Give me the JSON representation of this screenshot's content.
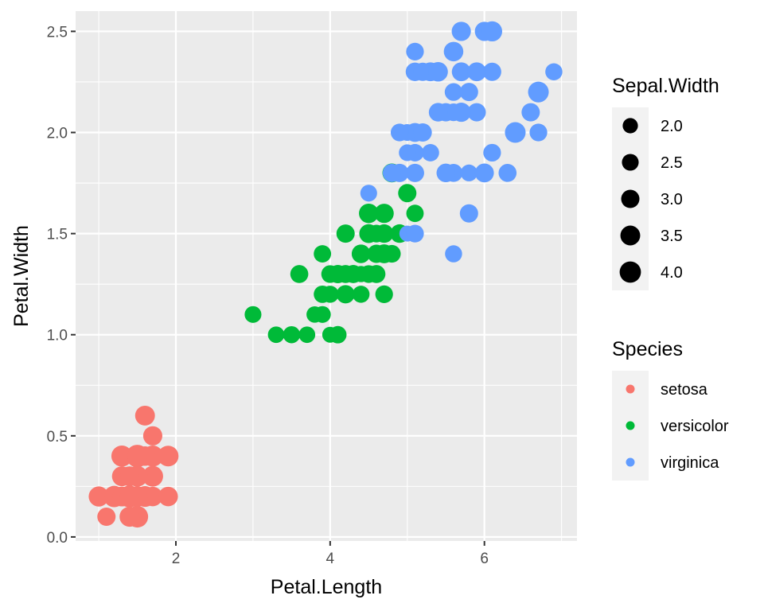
{
  "chart_data": {
    "type": "scatter",
    "title": "",
    "xlabel": "Petal.Length",
    "ylabel": "Petal.Width",
    "xlim": [
      0.7,
      7.2
    ],
    "ylim": [
      -0.02,
      2.6
    ],
    "x_ticks": [
      "2",
      "4",
      "6"
    ],
    "y_ticks": [
      "0.0",
      "0.5",
      "1.0",
      "1.5",
      "2.0",
      "2.5"
    ],
    "grid": true,
    "panel_background": "#ebebeb",
    "size_legend": {
      "title": "Sepal.Width",
      "values": [
        "2.0",
        "2.5",
        "3.0",
        "3.5",
        "4.0"
      ]
    },
    "color_legend": {
      "title": "Species",
      "labels": [
        "setosa",
        "versicolor",
        "virginica"
      ],
      "colors": [
        "#F8766D",
        "#00BA38",
        "#619CFF"
      ]
    },
    "series": [
      {
        "name": "setosa",
        "color": "#F8766D",
        "points": [
          {
            "x": 1.4,
            "y": 0.2,
            "s": 3.5
          },
          {
            "x": 1.4,
            "y": 0.2,
            "s": 3.0
          },
          {
            "x": 1.3,
            "y": 0.2,
            "s": 3.2
          },
          {
            "x": 1.5,
            "y": 0.2,
            "s": 3.1
          },
          {
            "x": 1.4,
            "y": 0.2,
            "s": 3.6
          },
          {
            "x": 1.7,
            "y": 0.4,
            "s": 3.9
          },
          {
            "x": 1.4,
            "y": 0.3,
            "s": 3.4
          },
          {
            "x": 1.5,
            "y": 0.2,
            "s": 3.4
          },
          {
            "x": 1.4,
            "y": 0.2,
            "s": 2.9
          },
          {
            "x": 1.5,
            "y": 0.1,
            "s": 3.1
          },
          {
            "x": 1.5,
            "y": 0.2,
            "s": 3.7
          },
          {
            "x": 1.6,
            "y": 0.2,
            "s": 3.4
          },
          {
            "x": 1.4,
            "y": 0.1,
            "s": 3.0
          },
          {
            "x": 1.1,
            "y": 0.1,
            "s": 3.0
          },
          {
            "x": 1.2,
            "y": 0.2,
            "s": 4.0
          },
          {
            "x": 1.5,
            "y": 0.4,
            "s": 4.4
          },
          {
            "x": 1.3,
            "y": 0.4,
            "s": 3.9
          },
          {
            "x": 1.4,
            "y": 0.3,
            "s": 3.5
          },
          {
            "x": 1.7,
            "y": 0.3,
            "s": 3.8
          },
          {
            "x": 1.5,
            "y": 0.3,
            "s": 3.8
          },
          {
            "x": 1.7,
            "y": 0.2,
            "s": 3.4
          },
          {
            "x": 1.5,
            "y": 0.4,
            "s": 3.7
          },
          {
            "x": 1.0,
            "y": 0.2,
            "s": 3.6
          },
          {
            "x": 1.7,
            "y": 0.5,
            "s": 3.3
          },
          {
            "x": 1.9,
            "y": 0.2,
            "s": 3.4
          },
          {
            "x": 1.6,
            "y": 0.2,
            "s": 3.0
          },
          {
            "x": 1.6,
            "y": 0.4,
            "s": 3.4
          },
          {
            "x": 1.5,
            "y": 0.2,
            "s": 3.5
          },
          {
            "x": 1.4,
            "y": 0.2,
            "s": 3.4
          },
          {
            "x": 1.6,
            "y": 0.2,
            "s": 3.2
          },
          {
            "x": 1.6,
            "y": 0.2,
            "s": 3.1
          },
          {
            "x": 1.5,
            "y": 0.4,
            "s": 3.4
          },
          {
            "x": 1.5,
            "y": 0.1,
            "s": 4.1
          },
          {
            "x": 1.4,
            "y": 0.2,
            "s": 4.2
          },
          {
            "x": 1.5,
            "y": 0.2,
            "s": 3.1
          },
          {
            "x": 1.2,
            "y": 0.2,
            "s": 3.2
          },
          {
            "x": 1.3,
            "y": 0.2,
            "s": 3.5
          },
          {
            "x": 1.4,
            "y": 0.1,
            "s": 3.6
          },
          {
            "x": 1.3,
            "y": 0.2,
            "s": 3.0
          },
          {
            "x": 1.5,
            "y": 0.2,
            "s": 3.4
          },
          {
            "x": 1.3,
            "y": 0.3,
            "s": 3.5
          },
          {
            "x": 1.3,
            "y": 0.3,
            "s": 2.3
          },
          {
            "x": 1.3,
            "y": 0.2,
            "s": 3.2
          },
          {
            "x": 1.6,
            "y": 0.6,
            "s": 3.5
          },
          {
            "x": 1.9,
            "y": 0.4,
            "s": 3.8
          },
          {
            "x": 1.4,
            "y": 0.3,
            "s": 3.0
          },
          {
            "x": 1.6,
            "y": 0.2,
            "s": 3.8
          },
          {
            "x": 1.4,
            "y": 0.2,
            "s": 3.2
          },
          {
            "x": 1.5,
            "y": 0.2,
            "s": 3.7
          },
          {
            "x": 1.4,
            "y": 0.2,
            "s": 3.3
          }
        ]
      },
      {
        "name": "versicolor",
        "color": "#00BA38",
        "points": [
          {
            "x": 4.7,
            "y": 1.4,
            "s": 3.2
          },
          {
            "x": 4.5,
            "y": 1.5,
            "s": 3.2
          },
          {
            "x": 4.9,
            "y": 1.5,
            "s": 3.1
          },
          {
            "x": 4.0,
            "y": 1.3,
            "s": 2.3
          },
          {
            "x": 4.6,
            "y": 1.5,
            "s": 2.8
          },
          {
            "x": 4.5,
            "y": 1.3,
            "s": 2.8
          },
          {
            "x": 4.7,
            "y": 1.6,
            "s": 3.3
          },
          {
            "x": 3.3,
            "y": 1.0,
            "s": 2.4
          },
          {
            "x": 4.6,
            "y": 1.3,
            "s": 2.9
          },
          {
            "x": 3.9,
            "y": 1.4,
            "s": 2.7
          },
          {
            "x": 3.5,
            "y": 1.0,
            "s": 2.0
          },
          {
            "x": 4.2,
            "y": 1.5,
            "s": 3.0
          },
          {
            "x": 4.0,
            "y": 1.0,
            "s": 2.2
          },
          {
            "x": 4.7,
            "y": 1.4,
            "s": 2.9
          },
          {
            "x": 3.6,
            "y": 1.3,
            "s": 2.9
          },
          {
            "x": 4.4,
            "y": 1.4,
            "s": 3.1
          },
          {
            "x": 4.5,
            "y": 1.5,
            "s": 3.0
          },
          {
            "x": 4.1,
            "y": 1.0,
            "s": 2.7
          },
          {
            "x": 4.5,
            "y": 1.5,
            "s": 2.2
          },
          {
            "x": 3.9,
            "y": 1.1,
            "s": 2.5
          },
          {
            "x": 4.8,
            "y": 1.8,
            "s": 3.2
          },
          {
            "x": 4.0,
            "y": 1.3,
            "s": 2.8
          },
          {
            "x": 4.9,
            "y": 1.5,
            "s": 2.5
          },
          {
            "x": 4.7,
            "y": 1.2,
            "s": 2.8
          },
          {
            "x": 4.3,
            "y": 1.3,
            "s": 2.9
          },
          {
            "x": 4.4,
            "y": 1.4,
            "s": 3.0
          },
          {
            "x": 4.8,
            "y": 1.4,
            "s": 2.8
          },
          {
            "x": 5.0,
            "y": 1.7,
            "s": 3.0
          },
          {
            "x": 4.5,
            "y": 1.5,
            "s": 2.9
          },
          {
            "x": 3.5,
            "y": 1.0,
            "s": 2.6
          },
          {
            "x": 3.8,
            "y": 1.1,
            "s": 2.4
          },
          {
            "x": 3.7,
            "y": 1.0,
            "s": 2.4
          },
          {
            "x": 3.9,
            "y": 1.2,
            "s": 2.7
          },
          {
            "x": 5.1,
            "y": 1.6,
            "s": 2.7
          },
          {
            "x": 4.5,
            "y": 1.5,
            "s": 3.0
          },
          {
            "x": 4.5,
            "y": 1.6,
            "s": 3.4
          },
          {
            "x": 4.7,
            "y": 1.5,
            "s": 3.1
          },
          {
            "x": 4.4,
            "y": 1.3,
            "s": 2.3
          },
          {
            "x": 4.1,
            "y": 1.3,
            "s": 3.0
          },
          {
            "x": 4.0,
            "y": 1.3,
            "s": 2.5
          },
          {
            "x": 4.4,
            "y": 1.2,
            "s": 2.6
          },
          {
            "x": 4.6,
            "y": 1.4,
            "s": 3.0
          },
          {
            "x": 4.0,
            "y": 1.2,
            "s": 2.6
          },
          {
            "x": 3.3,
            "y": 1.0,
            "s": 2.3
          },
          {
            "x": 4.2,
            "y": 1.3,
            "s": 2.7
          },
          {
            "x": 4.2,
            "y": 1.2,
            "s": 3.0
          },
          {
            "x": 4.2,
            "y": 1.3,
            "s": 2.9
          },
          {
            "x": 4.3,
            "y": 1.3,
            "s": 2.9
          },
          {
            "x": 3.0,
            "y": 1.1,
            "s": 2.5
          },
          {
            "x": 4.1,
            "y": 1.3,
            "s": 2.8
          }
        ]
      },
      {
        "name": "virginica",
        "color": "#619CFF",
        "points": [
          {
            "x": 6.0,
            "y": 2.5,
            "s": 3.3
          },
          {
            "x": 5.1,
            "y": 1.9,
            "s": 2.7
          },
          {
            "x": 5.9,
            "y": 2.1,
            "s": 3.0
          },
          {
            "x": 5.6,
            "y": 1.8,
            "s": 2.9
          },
          {
            "x": 5.8,
            "y": 2.2,
            "s": 3.0
          },
          {
            "x": 6.6,
            "y": 2.1,
            "s": 3.0
          },
          {
            "x": 4.5,
            "y": 1.7,
            "s": 2.5
          },
          {
            "x": 6.3,
            "y": 1.8,
            "s": 2.9
          },
          {
            "x": 5.8,
            "y": 1.8,
            "s": 2.5
          },
          {
            "x": 6.1,
            "y": 2.5,
            "s": 3.6
          },
          {
            "x": 5.1,
            "y": 2.0,
            "s": 3.2
          },
          {
            "x": 5.3,
            "y": 1.9,
            "s": 2.7
          },
          {
            "x": 5.5,
            "y": 2.1,
            "s": 3.0
          },
          {
            "x": 5.0,
            "y": 2.0,
            "s": 2.5
          },
          {
            "x": 5.1,
            "y": 2.4,
            "s": 2.8
          },
          {
            "x": 5.3,
            "y": 2.3,
            "s": 3.2
          },
          {
            "x": 5.5,
            "y": 1.8,
            "s": 3.0
          },
          {
            "x": 6.7,
            "y": 2.2,
            "s": 3.8
          },
          {
            "x": 6.9,
            "y": 2.3,
            "s": 2.6
          },
          {
            "x": 5.0,
            "y": 1.5,
            "s": 2.2
          },
          {
            "x": 5.7,
            "y": 2.3,
            "s": 3.2
          },
          {
            "x": 4.9,
            "y": 2.0,
            "s": 2.8
          },
          {
            "x": 6.7,
            "y": 2.0,
            "s": 2.8
          },
          {
            "x": 4.9,
            "y": 1.8,
            "s": 2.7
          },
          {
            "x": 5.7,
            "y": 2.1,
            "s": 3.3
          },
          {
            "x": 6.0,
            "y": 1.8,
            "s": 3.2
          },
          {
            "x": 4.8,
            "y": 1.8,
            "s": 2.8
          },
          {
            "x": 4.9,
            "y": 1.8,
            "s": 3.0
          },
          {
            "x": 5.6,
            "y": 2.1,
            "s": 2.8
          },
          {
            "x": 5.8,
            "y": 1.6,
            "s": 3.0
          },
          {
            "x": 6.1,
            "y": 1.9,
            "s": 2.8
          },
          {
            "x": 6.4,
            "y": 2.0,
            "s": 3.8
          },
          {
            "x": 5.6,
            "y": 2.2,
            "s": 2.8
          },
          {
            "x": 5.1,
            "y": 1.5,
            "s": 2.8
          },
          {
            "x": 5.6,
            "y": 1.4,
            "s": 2.6
          },
          {
            "x": 6.1,
            "y": 2.3,
            "s": 3.0
          },
          {
            "x": 5.6,
            "y": 2.4,
            "s": 3.4
          },
          {
            "x": 5.5,
            "y": 1.8,
            "s": 3.1
          },
          {
            "x": 4.8,
            "y": 1.8,
            "s": 3.0
          },
          {
            "x": 5.4,
            "y": 2.1,
            "s": 3.1
          },
          {
            "x": 5.6,
            "y": 2.4,
            "s": 3.1
          },
          {
            "x": 5.1,
            "y": 2.3,
            "s": 3.1
          },
          {
            "x": 5.1,
            "y": 1.9,
            "s": 2.7
          },
          {
            "x": 5.9,
            "y": 2.3,
            "s": 3.2
          },
          {
            "x": 5.7,
            "y": 2.5,
            "s": 3.3
          },
          {
            "x": 5.2,
            "y": 2.3,
            "s": 3.0
          },
          {
            "x": 5.0,
            "y": 1.9,
            "s": 2.5
          },
          {
            "x": 5.2,
            "y": 2.0,
            "s": 3.0
          },
          {
            "x": 5.4,
            "y": 2.3,
            "s": 3.4
          },
          {
            "x": 5.1,
            "y": 1.8,
            "s": 3.0
          }
        ]
      }
    ]
  }
}
